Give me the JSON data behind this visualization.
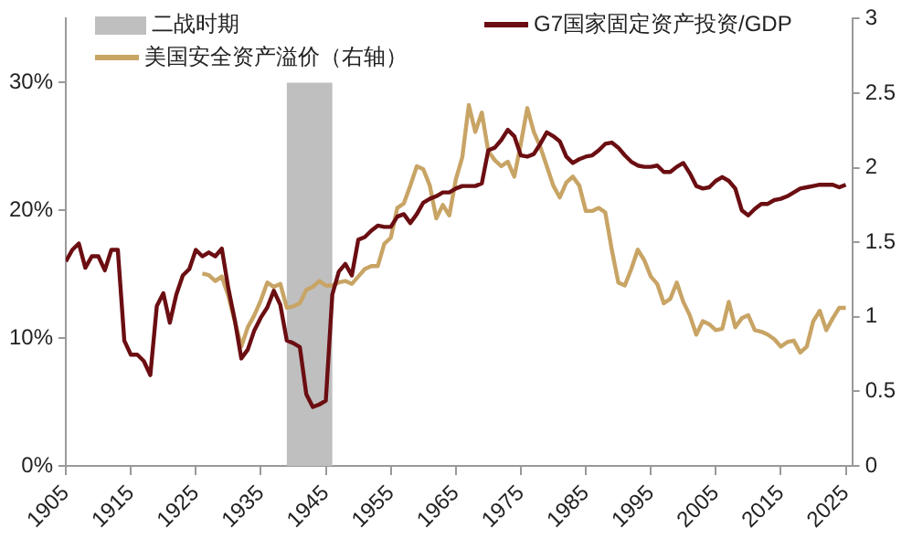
{
  "chart_data": {
    "type": "line",
    "x": [
      1905,
      1906,
      1907,
      1908,
      1909,
      1910,
      1911,
      1912,
      1913,
      1914,
      1915,
      1916,
      1917,
      1918,
      1919,
      1920,
      1921,
      1922,
      1923,
      1924,
      1925,
      1926,
      1927,
      1928,
      1929,
      1930,
      1931,
      1932,
      1933,
      1934,
      1935,
      1936,
      1937,
      1938,
      1939,
      1940,
      1941,
      1942,
      1943,
      1944,
      1945,
      1946,
      1947,
      1948,
      1949,
      1950,
      1951,
      1952,
      1953,
      1954,
      1955,
      1956,
      1957,
      1958,
      1959,
      1960,
      1961,
      1962,
      1963,
      1964,
      1965,
      1966,
      1967,
      1968,
      1969,
      1970,
      1971,
      1972,
      1973,
      1974,
      1975,
      1976,
      1977,
      1978,
      1979,
      1980,
      1981,
      1982,
      1983,
      1984,
      1985,
      1986,
      1987,
      1988,
      1989,
      1990,
      1991,
      1992,
      1993,
      1994,
      1995,
      1996,
      1997,
      1998,
      1999,
      2000,
      2001,
      2002,
      2003,
      2004,
      2005,
      2006,
      2007,
      2008,
      2009,
      2010,
      2011,
      2012,
      2013,
      2014,
      2015,
      2016,
      2017,
      2018,
      2019,
      2020,
      2021,
      2022,
      2023,
      2024,
      2025
    ],
    "series": [
      {
        "name": "G7国家固定资产投资/GDP",
        "color": "#6b0e12",
        "values": [
          16.0,
          16.9,
          17.4,
          15.5,
          16.4,
          16.4,
          15.3,
          16.9,
          16.9,
          9.8,
          8.7,
          8.7,
          8.2,
          7.1,
          12.5,
          13.5,
          11.2,
          13.4,
          14.9,
          15.4,
          16.9,
          16.4,
          16.7,
          16.4,
          17.0,
          13.9,
          11.4,
          8.4,
          9.1,
          10.6,
          11.6,
          12.4,
          13.7,
          12.6,
          9.8,
          9.6,
          9.3,
          5.6,
          4.6,
          4.8,
          5.1,
          13.4,
          15.2,
          15.8,
          14.9,
          17.7,
          17.9,
          18.4,
          18.8,
          18.7,
          18.7,
          19.5,
          19.7,
          19.0,
          19.7,
          20.6,
          20.9,
          21.1,
          21.4,
          21.4,
          21.7,
          21.9,
          21.9,
          21.9,
          22.1,
          24.7,
          24.9,
          25.5,
          26.3,
          25.8,
          24.3,
          24.2,
          24.4,
          25.2,
          26.1,
          25.8,
          25.4,
          24.2,
          23.7,
          24.0,
          24.2,
          24.3,
          24.7,
          25.2,
          25.3,
          24.9,
          24.3,
          23.8,
          23.5,
          23.4,
          23.4,
          23.5,
          23.0,
          23.0,
          23.4,
          23.7,
          22.9,
          21.9,
          21.7,
          21.8,
          22.3,
          22.6,
          22.3,
          21.7,
          20.0,
          19.6,
          20.1,
          20.5,
          20.5,
          20.8,
          20.9,
          21.1,
          21.4,
          21.7,
          21.8,
          21.9,
          22.0,
          22.0,
          22.0,
          21.8,
          22.0
        ]
      },
      {
        "name": "美国安全资产溢价（右轴）",
        "color": "#c8a465",
        "axis": "y2",
        "values": [
          null,
          null,
          null,
          null,
          null,
          null,
          null,
          null,
          null,
          null,
          null,
          null,
          null,
          null,
          null,
          null,
          null,
          null,
          null,
          null,
          null,
          1.29,
          1.28,
          1.24,
          1.27,
          1.14,
          0.97,
          0.8,
          0.93,
          1.01,
          1.11,
          1.23,
          1.2,
          1.22,
          1.06,
          1.07,
          1.09,
          1.18,
          1.2,
          1.24,
          1.21,
          1.21,
          1.23,
          1.24,
          1.22,
          1.27,
          1.32,
          1.34,
          1.34,
          1.49,
          1.53,
          1.73,
          1.76,
          1.88,
          2.01,
          1.99,
          1.88,
          1.66,
          1.75,
          1.68,
          1.92,
          2.07,
          2.42,
          2.24,
          2.37,
          2.11,
          2.05,
          2.01,
          2.04,
          1.94,
          2.16,
          2.4,
          2.24,
          2.14,
          2.01,
          1.88,
          1.8,
          1.9,
          1.94,
          1.88,
          1.71,
          1.71,
          1.73,
          1.7,
          1.45,
          1.23,
          1.21,
          1.32,
          1.45,
          1.38,
          1.27,
          1.22,
          1.09,
          1.12,
          1.23,
          1.1,
          1.01,
          0.88,
          0.97,
          0.95,
          0.91,
          0.92,
          1.1,
          0.93,
          0.99,
          1.01,
          0.91,
          0.9,
          0.88,
          0.85,
          0.8,
          0.83,
          0.84,
          0.76,
          0.8,
          0.97,
          1.04,
          0.91,
          0.99,
          1.06,
          1.06
        ]
      }
    ],
    "xlim": [
      1905,
      2026
    ],
    "xticks": [
      1905,
      1915,
      1925,
      1935,
      1945,
      1955,
      1965,
      1975,
      1985,
      1995,
      2005,
      2015,
      2025
    ],
    "ylim": [
      0,
      35
    ],
    "yticks": [
      {
        "value": 0,
        "label": "0%"
      },
      {
        "value": 10,
        "label": "10%"
      },
      {
        "value": 20,
        "label": "20%"
      },
      {
        "value": 30,
        "label": "30%"
      }
    ],
    "y2lim": [
      0,
      3
    ],
    "y2ticks": [
      0,
      0.5,
      1,
      1.5,
      2,
      2.5,
      3
    ],
    "bands": [
      {
        "axis": "x",
        "from": 1939,
        "to": 1946,
        "label": "二战时期",
        "color": "#bfbfbf"
      }
    ],
    "legend": "top",
    "grid": false,
    "marker": "none",
    "line_style": "solid"
  }
}
